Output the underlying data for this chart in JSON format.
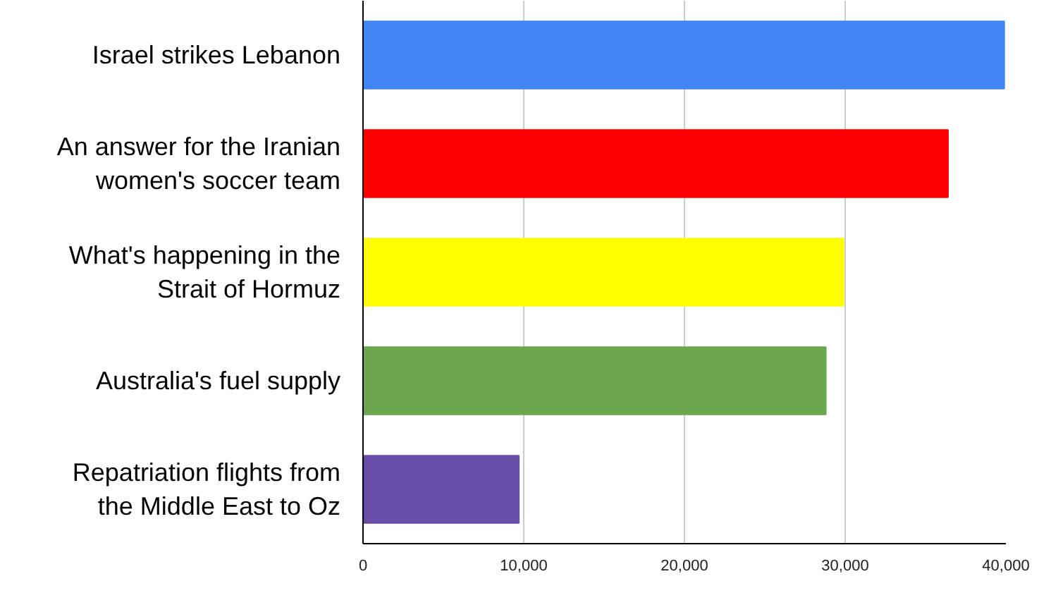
{
  "chart_data": {
    "type": "bar",
    "orientation": "horizontal",
    "categories": [
      "Israel strikes Lebanon",
      "An answer for the Iranian women's soccer team",
      "What's happening in the Strait of Hormuz",
      "Australia's fuel supply",
      "Repatriation flights from the Middle East to Oz"
    ],
    "values": [
      39900,
      36400,
      29900,
      28800,
      9700
    ],
    "colors": [
      "#4285f4",
      "#ff0000",
      "#ffff00",
      "#6aa84f",
      "#674ea7"
    ],
    "xlim": [
      0,
      40000
    ],
    "xticks": [
      0,
      {
        "value": 10000,
        "label": "10,000"
      },
      {
        "value": 20000,
        "label": "20,000"
      },
      {
        "value": 30000,
        "label": "30,000"
      },
      {
        "value": 40000,
        "label": "40,000"
      }
    ],
    "grid": "x"
  }
}
